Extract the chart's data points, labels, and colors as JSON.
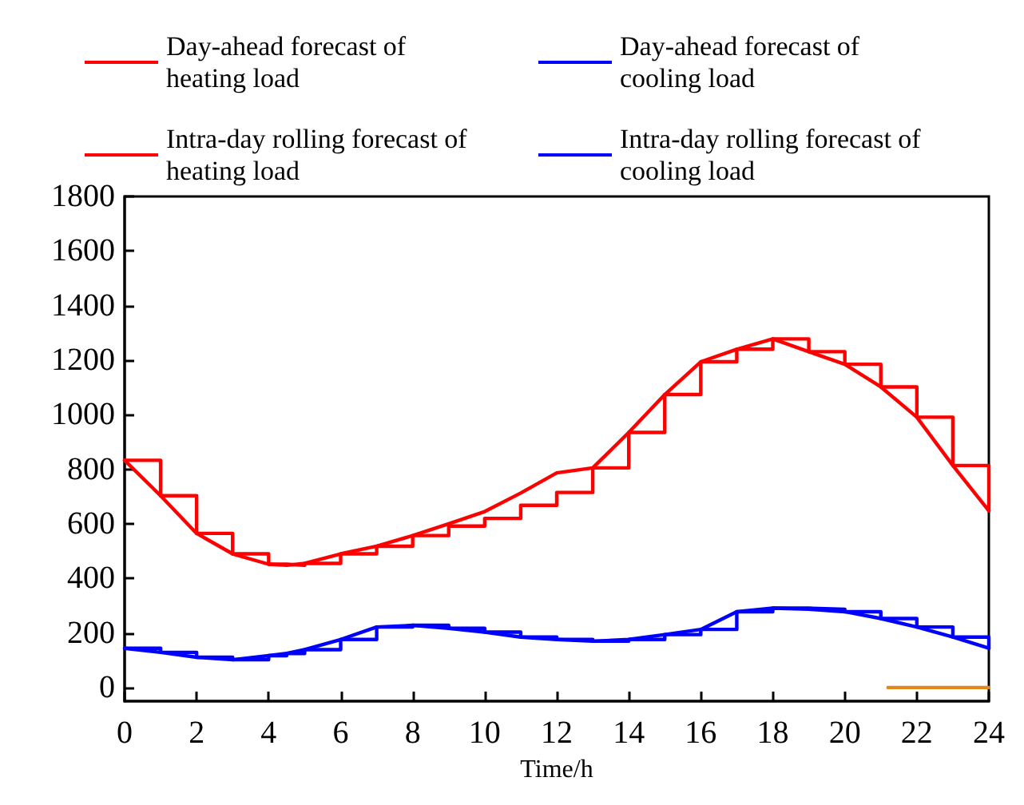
{
  "chart_data": {
    "type": "line",
    "xlabel": "Time/h",
    "xlim": [
      0,
      24
    ],
    "xticks": [
      0,
      2,
      4,
      6,
      8,
      10,
      12,
      14,
      16,
      18,
      20,
      22,
      24
    ],
    "ylim": [
      -50,
      1800
    ],
    "yticks": [
      0,
      200,
      400,
      600,
      800,
      1000,
      1200,
      1400,
      1600,
      1800
    ],
    "legend": "top",
    "grid": false,
    "marker": "none",
    "line_style": "solid",
    "x": [
      0,
      1,
      2,
      3,
      4,
      4.5,
      5,
      6,
      7,
      8,
      9,
      10,
      11,
      12,
      13,
      14,
      15,
      16,
      17,
      18,
      19,
      20,
      21,
      22,
      23,
      24
    ],
    "series": [
      {
        "name": "Day-ahead forecast of heating load",
        "type": "step",
        "color": "#ff0000",
        "values": [
          833,
          703,
          565,
          490,
          452,
          448,
          455,
          490,
          518,
          557,
          592,
          620,
          668,
          715,
          805,
          935,
          1074,
          1194,
          1240,
          1278,
          1231,
          1185,
          1102,
          991,
          814,
          648
        ]
      },
      {
        "name": "Day-ahead forecast of cooling load",
        "type": "step",
        "color": "#0000ff",
        "values": [
          144,
          129,
          111,
          102,
          117,
          125,
          139,
          176,
          222,
          228,
          217,
          203,
          185,
          176,
          170,
          176,
          194,
          213,
          278,
          291,
          287,
          278,
          253,
          222,
          185,
          144
        ]
      },
      {
        "name": "Intra-day rolling forecast of heating load",
        "color": "#ff0000",
        "values": [
          833,
          703,
          565,
          490,
          452,
          448,
          455,
          490,
          518,
          557,
          600,
          645,
          713,
          787,
          805,
          935,
          1074,
          1194,
          1240,
          1278,
          1231,
          1185,
          1102,
          991,
          814,
          648
        ]
      },
      {
        "name": "Intra-day rolling forecast of cooling load",
        "color": "#0000ff",
        "values": [
          144,
          129,
          111,
          102,
          117,
          125,
          139,
          176,
          222,
          228,
          217,
          203,
          185,
          176,
          170,
          176,
          194,
          213,
          278,
          291,
          287,
          278,
          253,
          222,
          185,
          144
        ]
      },
      {
        "color": "#e08a1e",
        "x": [
          21.2,
          24
        ],
        "values": [
          0,
          0
        ]
      }
    ]
  }
}
